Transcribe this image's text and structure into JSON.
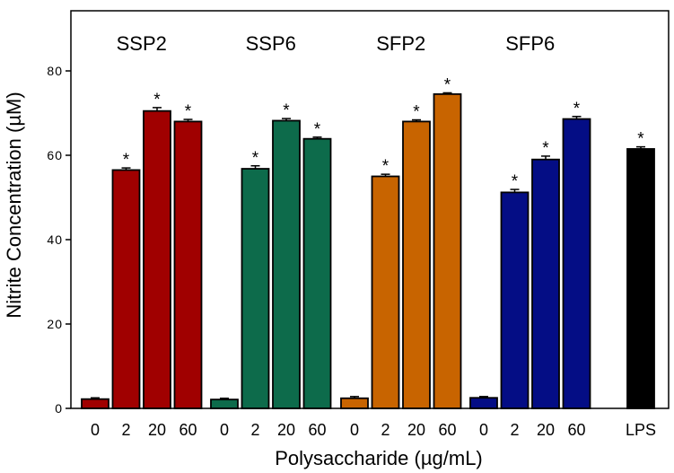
{
  "chart_data": {
    "type": "bar",
    "xlabel": "Polysaccharide (µg/mL)",
    "ylabel": "Nitrite Concentration (µM)",
    "ylim": [
      0,
      95
    ],
    "yticks": [
      0,
      20,
      40,
      60,
      80
    ],
    "grid": false,
    "legend": "none",
    "groups": [
      {
        "name": "SSP2",
        "color": "#a00000",
        "categories": [
          "0",
          "2",
          "20",
          "60"
        ],
        "values": [
          2.2,
          56.5,
          70.5,
          68.0
        ],
        "errors": [
          0.3,
          0.5,
          0.8,
          0.5
        ],
        "significant": [
          false,
          true,
          true,
          true
        ]
      },
      {
        "name": "SSP6",
        "color": "#0d6b4b",
        "categories": [
          "0",
          "2",
          "20",
          "60"
        ],
        "values": [
          2.1,
          56.8,
          68.2,
          63.9
        ],
        "errors": [
          0.3,
          0.7,
          0.5,
          0.4
        ],
        "significant": [
          false,
          true,
          true,
          true
        ]
      },
      {
        "name": "SFP2",
        "color": "#c86400",
        "categories": [
          "0",
          "2",
          "20",
          "60"
        ],
        "values": [
          2.4,
          55.0,
          68.0,
          74.5
        ],
        "errors": [
          0.4,
          0.5,
          0.4,
          0.3
        ],
        "significant": [
          false,
          true,
          true,
          true
        ]
      },
      {
        "name": "SFP6",
        "color": "#040d85",
        "categories": [
          "0",
          "2",
          "20",
          "60"
        ],
        "values": [
          2.5,
          51.2,
          59.0,
          68.6
        ],
        "errors": [
          0.3,
          0.7,
          0.8,
          0.6
        ],
        "significant": [
          false,
          true,
          true,
          true
        ]
      },
      {
        "name": "",
        "color": "#000000",
        "categories": [
          "LPS"
        ],
        "values": [
          61.5
        ],
        "errors": [
          0.5
        ],
        "significant": [
          true
        ]
      }
    ],
    "significance_marker": "*"
  }
}
